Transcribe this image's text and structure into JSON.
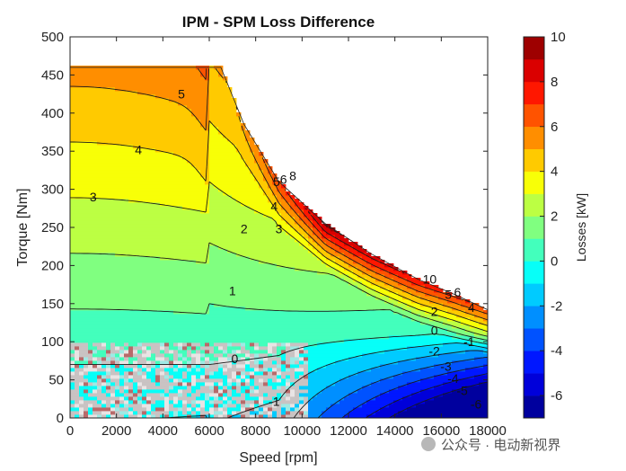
{
  "chart_data": {
    "type": "heatmap",
    "title": "IPM - SPM Loss Difference",
    "xlabel": "Speed [rpm]",
    "ylabel": "Torque [Nm]",
    "xlim": [
      0,
      18000
    ],
    "ylim": [
      0,
      500
    ],
    "x_ticks": [
      0,
      2000,
      4000,
      6000,
      8000,
      10000,
      12000,
      14000,
      16000,
      18000
    ],
    "y_ticks": [
      0,
      50,
      100,
      150,
      200,
      250,
      300,
      350,
      400,
      450,
      500
    ],
    "x_tick_labels": [
      "0",
      "2000",
      "4000",
      "6000",
      "8000",
      "10000",
      "12000",
      "14000",
      "16000",
      "18000"
    ],
    "y_tick_labels": [
      "0",
      "50",
      "100",
      "150",
      "200",
      "250",
      "300",
      "350",
      "400",
      "450",
      "500"
    ],
    "colorbar": {
      "label": "Losses [kW]",
      "range": [
        -7,
        10
      ],
      "ticks": [
        -6,
        -4,
        -2,
        0,
        2,
        4,
        6,
        8,
        10
      ],
      "tick_labels": [
        "-6",
        "-4",
        "-2",
        "0",
        "2",
        "4",
        "6",
        "8",
        "10"
      ],
      "colormap": "jet"
    },
    "operating_envelope": {
      "x": [
        0,
        6500,
        7500,
        9000,
        11000,
        13000,
        15000,
        16500,
        18000
      ],
      "y": [
        460,
        460,
        385,
        310,
        255,
        215,
        182,
        163,
        142
      ]
    },
    "contour_labels": [
      {
        "text": "5",
        "x": 4800,
        "y": 425
      },
      {
        "text": "4",
        "x": 2950,
        "y": 352
      },
      {
        "text": "3",
        "x": 1000,
        "y": 290
      },
      {
        "text": "2",
        "x": 7500,
        "y": 248
      },
      {
        "text": "1",
        "x": 7000,
        "y": 167
      },
      {
        "text": "0",
        "x": 7100,
        "y": 78
      },
      {
        "text": "4",
        "x": 8800,
        "y": 278
      },
      {
        "text": "3",
        "x": 9000,
        "y": 248
      },
      {
        "text": "5",
        "x": 8900,
        "y": 310
      },
      {
        "text": "6",
        "x": 9200,
        "y": 313
      },
      {
        "text": "8",
        "x": 9600,
        "y": 318
      },
      {
        "text": "10",
        "x": 15500,
        "y": 182
      },
      {
        "text": "5",
        "x": 16300,
        "y": 162
      },
      {
        "text": "6",
        "x": 16700,
        "y": 165
      },
      {
        "text": "4",
        "x": 17300,
        "y": 145
      },
      {
        "text": "2",
        "x": 15700,
        "y": 140
      },
      {
        "text": "0",
        "x": 15700,
        "y": 115
      },
      {
        "text": "-1",
        "x": 17200,
        "y": 100
      },
      {
        "text": "-2",
        "x": 15700,
        "y": 88
      },
      {
        "text": "-3",
        "x": 16200,
        "y": 68
      },
      {
        "text": "-4",
        "x": 16500,
        "y": 52
      },
      {
        "text": "-5",
        "x": 16900,
        "y": 36
      },
      {
        "text": "-6",
        "x": 17500,
        "y": 18
      },
      {
        "text": "-1",
        "x": 8800,
        "y": 22
      }
    ],
    "noisy_region": {
      "x": [
        0,
        10200
      ],
      "y": [
        0,
        100
      ]
    }
  },
  "watermark": "公众号 · 电动新视界"
}
